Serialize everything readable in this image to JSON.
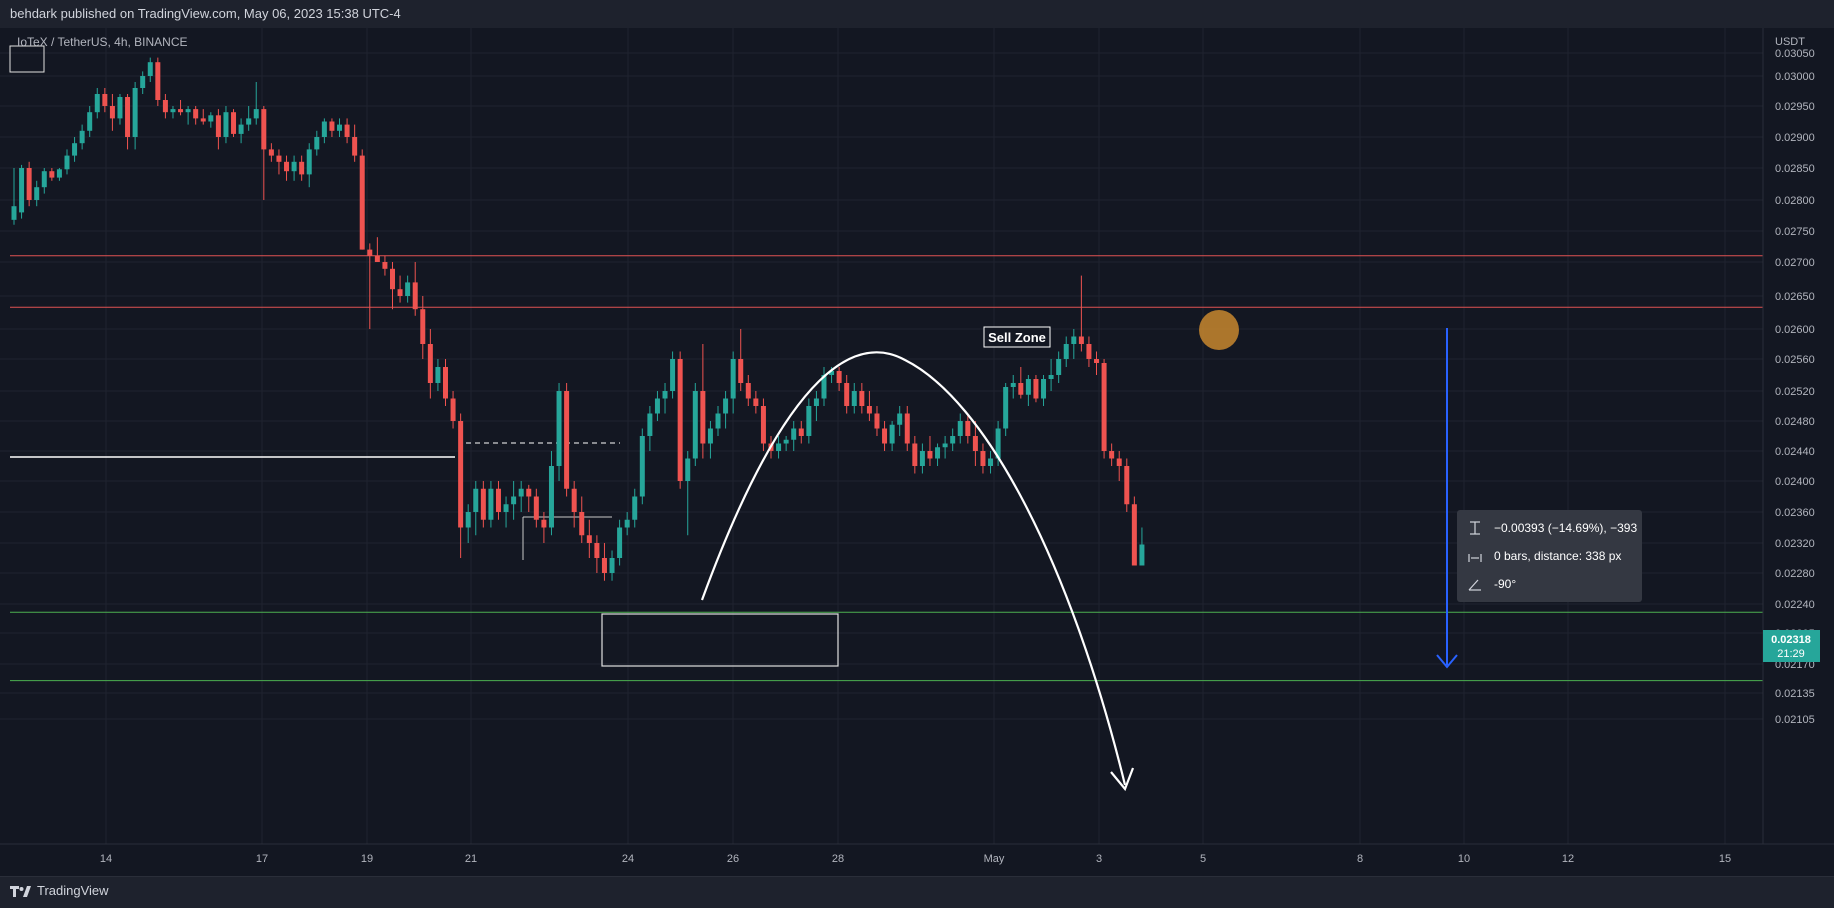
{
  "header": {
    "publish_text": "behdark published on TradingView.com, May 06, 2023 15:38 UTC-4"
  },
  "footer": {
    "brand": "TradingView",
    "logo_icon": "tradingview-logo-icon"
  },
  "chart_data": {
    "type": "candlestick",
    "symbol_label": "IoTeX / TetherUS, 4h, BINANCE",
    "currency": "USDT",
    "y_ticks": [
      "0.03050",
      "0.03000",
      "0.02950",
      "0.02900",
      "0.02850",
      "0.02800",
      "0.02750",
      "0.02700",
      "0.02650",
      "0.02600",
      "0.02560",
      "0.02520",
      "0.02480",
      "0.02440",
      "0.02400",
      "0.02360",
      "0.02320",
      "0.02280",
      "0.02240",
      "0.02205",
      "0.02170",
      "0.02135",
      "0.02105"
    ],
    "x_ticks": [
      "14",
      "17",
      "19",
      "21",
      "24",
      "26",
      "28",
      "May",
      "3",
      "5",
      "8",
      "10",
      "12",
      "15"
    ],
    "last_price": {
      "value": "0.02318",
      "countdown": "21:29"
    },
    "colors": {
      "up": "#26a69a",
      "down": "#ef5350",
      "background": "#131722",
      "grid": "#1f2330",
      "resistance": "#e05252",
      "support": "#4caf50",
      "arrow": "#2962ff",
      "marker": "#c8872e"
    },
    "annotations": {
      "sell_zone_label": "Sell Zone",
      "resistance_levels": [
        0.0271,
        0.02633
      ],
      "support_levels": [
        0.0223,
        0.0215
      ],
      "measure": {
        "price_change": "−0.00393 (−14.69%), −393",
        "bars_distance": "0 bars, distance: 338 px",
        "angle": "-90°"
      }
    },
    "candles": [
      [
        0.02768,
        0.0285,
        0.0276,
        0.0279
      ],
      [
        0.0278,
        0.02855,
        0.0277,
        0.0285
      ],
      [
        0.0285,
        0.0286,
        0.0279,
        0.028
      ],
      [
        0.028,
        0.0283,
        0.0279,
        0.0282
      ],
      [
        0.0282,
        0.0285,
        0.0281,
        0.02845
      ],
      [
        0.02845,
        0.0285,
        0.0283,
        0.02835
      ],
      [
        0.02835,
        0.0285,
        0.0283,
        0.02848
      ],
      [
        0.02848,
        0.0288,
        0.0284,
        0.0287
      ],
      [
        0.0287,
        0.029,
        0.0286,
        0.0289
      ],
      [
        0.0289,
        0.0292,
        0.0288,
        0.0291
      ],
      [
        0.0291,
        0.0295,
        0.029,
        0.0294
      ],
      [
        0.0294,
        0.0298,
        0.0293,
        0.0297
      ],
      [
        0.0297,
        0.0298,
        0.0294,
        0.0295
      ],
      [
        0.0295,
        0.0297,
        0.0291,
        0.0293
      ],
      [
        0.0293,
        0.0297,
        0.0292,
        0.02965
      ],
      [
        0.02965,
        0.0297,
        0.0288,
        0.029
      ],
      [
        0.029,
        0.0299,
        0.0288,
        0.0298
      ],
      [
        0.0298,
        0.0301,
        0.0297,
        0.03
      ],
      [
        0.03,
        0.0304,
        0.0299,
        0.0303
      ],
      [
        0.0303,
        0.0304,
        0.0295,
        0.0296
      ],
      [
        0.0296,
        0.0297,
        0.0293,
        0.0294
      ],
      [
        0.0294,
        0.0295,
        0.0293,
        0.02945
      ],
      [
        0.02945,
        0.0296,
        0.02935,
        0.0294
      ],
      [
        0.0294,
        0.0295,
        0.0292,
        0.02945
      ],
      [
        0.02945,
        0.0295,
        0.0292,
        0.0293
      ],
      [
        0.0293,
        0.02945,
        0.0292,
        0.02925
      ],
      [
        0.02925,
        0.0294,
        0.02915,
        0.02935
      ],
      [
        0.02935,
        0.02945,
        0.0288,
        0.029
      ],
      [
        0.029,
        0.0295,
        0.0289,
        0.0294
      ],
      [
        0.0294,
        0.02945,
        0.029,
        0.02905
      ],
      [
        0.02905,
        0.0293,
        0.0289,
        0.0292
      ],
      [
        0.0292,
        0.0295,
        0.0291,
        0.0293
      ],
      [
        0.0293,
        0.0299,
        0.0292,
        0.02945
      ],
      [
        0.02945,
        0.0295,
        0.028,
        0.0288
      ],
      [
        0.0288,
        0.0289,
        0.0286,
        0.0287
      ],
      [
        0.0287,
        0.0288,
        0.0284,
        0.0286
      ],
      [
        0.0286,
        0.0287,
        0.0283,
        0.02845
      ],
      [
        0.02845,
        0.0287,
        0.0283,
        0.0286
      ],
      [
        0.0286,
        0.0287,
        0.0283,
        0.0284
      ],
      [
        0.0284,
        0.0289,
        0.0282,
        0.0288
      ],
      [
        0.0288,
        0.0291,
        0.0287,
        0.029
      ],
      [
        0.029,
        0.0293,
        0.0289,
        0.02925
      ],
      [
        0.02925,
        0.0293,
        0.029,
        0.0291
      ],
      [
        0.0291,
        0.0293,
        0.029,
        0.0292
      ],
      [
        0.0292,
        0.0293,
        0.0289,
        0.029
      ],
      [
        0.029,
        0.0292,
        0.0286,
        0.0287
      ],
      [
        0.0287,
        0.0288,
        0.0272,
        0.0272
      ],
      [
        0.0272,
        0.0273,
        0.026,
        0.0271
      ],
      [
        0.0271,
        0.0274,
        0.027,
        0.027
      ],
      [
        0.027,
        0.0271,
        0.0268,
        0.0269
      ],
      [
        0.0269,
        0.027,
        0.0263,
        0.0266
      ],
      [
        0.0266,
        0.0268,
        0.0264,
        0.0265
      ],
      [
        0.0265,
        0.0268,
        0.0264,
        0.0267
      ],
      [
        0.0267,
        0.027,
        0.0262,
        0.0263
      ],
      [
        0.0263,
        0.0265,
        0.0256,
        0.0258
      ],
      [
        0.0258,
        0.026,
        0.0251,
        0.0253
      ],
      [
        0.0253,
        0.0256,
        0.0252,
        0.0255
      ],
      [
        0.0255,
        0.0256,
        0.025,
        0.0251
      ],
      [
        0.0251,
        0.0252,
        0.0247,
        0.0248
      ],
      [
        0.0248,
        0.0249,
        0.023,
        0.0234
      ],
      [
        0.0234,
        0.0237,
        0.0232,
        0.0236
      ],
      [
        0.0236,
        0.024,
        0.0233,
        0.0239
      ],
      [
        0.0239,
        0.024,
        0.0234,
        0.0235
      ],
      [
        0.0235,
        0.024,
        0.0234,
        0.0239
      ],
      [
        0.0239,
        0.024,
        0.0235,
        0.0236
      ],
      [
        0.0236,
        0.0238,
        0.0234,
        0.0237
      ],
      [
        0.0237,
        0.024,
        0.0235,
        0.0238
      ],
      [
        0.0238,
        0.024,
        0.0236,
        0.0239
      ],
      [
        0.0239,
        0.02395,
        0.0236,
        0.0238
      ],
      [
        0.0238,
        0.0239,
        0.0234,
        0.0235
      ],
      [
        0.0235,
        0.0236,
        0.0232,
        0.0234
      ],
      [
        0.0234,
        0.0244,
        0.0233,
        0.0242
      ],
      [
        0.0242,
        0.0253,
        0.024,
        0.0252
      ],
      [
        0.0252,
        0.0253,
        0.0238,
        0.0239
      ],
      [
        0.0239,
        0.024,
        0.0234,
        0.0236
      ],
      [
        0.0236,
        0.0238,
        0.0232,
        0.0233
      ],
      [
        0.0233,
        0.0235,
        0.023,
        0.0232
      ],
      [
        0.0232,
        0.0233,
        0.0228,
        0.023
      ],
      [
        0.023,
        0.0232,
        0.0227,
        0.0228
      ],
      [
        0.0228,
        0.0231,
        0.0227,
        0.023
      ],
      [
        0.023,
        0.0235,
        0.0229,
        0.0234
      ],
      [
        0.0234,
        0.0236,
        0.0233,
        0.0235
      ],
      [
        0.0235,
        0.0239,
        0.0234,
        0.0238
      ],
      [
        0.0238,
        0.0247,
        0.0237,
        0.0246
      ],
      [
        0.0246,
        0.025,
        0.0244,
        0.0249
      ],
      [
        0.0249,
        0.0252,
        0.0248,
        0.0251
      ],
      [
        0.0251,
        0.0253,
        0.0249,
        0.0252
      ],
      [
        0.0252,
        0.0257,
        0.0251,
        0.0256
      ],
      [
        0.0256,
        0.0257,
        0.0239,
        0.024
      ],
      [
        0.024,
        0.0244,
        0.0233,
        0.0243
      ],
      [
        0.0243,
        0.0253,
        0.0242,
        0.0252
      ],
      [
        0.0252,
        0.0258,
        0.0243,
        0.0245
      ],
      [
        0.0245,
        0.0248,
        0.0243,
        0.0247
      ],
      [
        0.0247,
        0.025,
        0.0246,
        0.0249
      ],
      [
        0.0249,
        0.0252,
        0.0247,
        0.0251
      ],
      [
        0.0251,
        0.0257,
        0.0249,
        0.0256
      ],
      [
        0.0256,
        0.026,
        0.0252,
        0.0253
      ],
      [
        0.0253,
        0.0254,
        0.025,
        0.0251
      ],
      [
        0.0251,
        0.0252,
        0.0249,
        0.025
      ],
      [
        0.025,
        0.0251,
        0.0244,
        0.0245
      ],
      [
        0.0245,
        0.0246,
        0.0243,
        0.0244
      ],
      [
        0.0244,
        0.0246,
        0.0243,
        0.0245
      ],
      [
        0.0245,
        0.0246,
        0.0244,
        0.02455
      ],
      [
        0.02455,
        0.0248,
        0.0244,
        0.0247
      ],
      [
        0.0247,
        0.0248,
        0.0245,
        0.0246
      ],
      [
        0.0246,
        0.0251,
        0.0245,
        0.025
      ],
      [
        0.025,
        0.0252,
        0.0248,
        0.0251
      ],
      [
        0.0251,
        0.0255,
        0.025,
        0.0254
      ],
      [
        0.0254,
        0.0255,
        0.0253,
        0.02545
      ],
      [
        0.02545,
        0.0255,
        0.0252,
        0.0253
      ],
      [
        0.0253,
        0.0254,
        0.0249,
        0.025
      ],
      [
        0.025,
        0.0253,
        0.0249,
        0.0252
      ],
      [
        0.0252,
        0.0253,
        0.0249,
        0.025
      ],
      [
        0.025,
        0.0252,
        0.0248,
        0.0249
      ],
      [
        0.0249,
        0.025,
        0.0246,
        0.0247
      ],
      [
        0.0247,
        0.0248,
        0.0244,
        0.0245
      ],
      [
        0.0245,
        0.0248,
        0.0244,
        0.02475
      ],
      [
        0.02475,
        0.025,
        0.0246,
        0.0249
      ],
      [
        0.0249,
        0.025,
        0.0244,
        0.0245
      ],
      [
        0.0245,
        0.0246,
        0.0241,
        0.0242
      ],
      [
        0.0242,
        0.0245,
        0.0241,
        0.0244
      ],
      [
        0.0244,
        0.0246,
        0.0242,
        0.0243
      ],
      [
        0.0243,
        0.0245,
        0.0242,
        0.02445
      ],
      [
        0.02445,
        0.0246,
        0.0243,
        0.0245
      ],
      [
        0.0245,
        0.0247,
        0.0244,
        0.0246
      ],
      [
        0.0246,
        0.0249,
        0.0245,
        0.0248
      ],
      [
        0.0248,
        0.0249,
        0.0245,
        0.0246
      ],
      [
        0.0246,
        0.0248,
        0.0242,
        0.0244
      ],
      [
        0.0244,
        0.0245,
        0.0241,
        0.0242
      ],
      [
        0.0242,
        0.0244,
        0.0241,
        0.0243
      ],
      [
        0.0243,
        0.0248,
        0.0242,
        0.0247
      ],
      [
        0.0247,
        0.0253,
        0.0246,
        0.02525
      ],
      [
        0.02525,
        0.0254,
        0.0251,
        0.0253
      ],
      [
        0.0253,
        0.0255,
        0.0251,
        0.02515
      ],
      [
        0.02515,
        0.0254,
        0.025,
        0.02535
      ],
      [
        0.02535,
        0.0254,
        0.02505,
        0.0251
      ],
      [
        0.0251,
        0.0254,
        0.025,
        0.02535
      ],
      [
        0.02535,
        0.0256,
        0.0252,
        0.0254
      ],
      [
        0.0254,
        0.0257,
        0.0253,
        0.0256
      ],
      [
        0.0256,
        0.0259,
        0.0255,
        0.0258
      ],
      [
        0.0258,
        0.026,
        0.0256,
        0.0259
      ],
      [
        0.0259,
        0.0268,
        0.0257,
        0.0258
      ],
      [
        0.0258,
        0.0259,
        0.0255,
        0.0256
      ],
      [
        0.0256,
        0.0257,
        0.0254,
        0.02555
      ],
      [
        0.02555,
        0.0256,
        0.0243,
        0.0244
      ],
      [
        0.0244,
        0.0245,
        0.0242,
        0.0243
      ],
      [
        0.0243,
        0.0244,
        0.024,
        0.0242
      ],
      [
        0.0242,
        0.0243,
        0.0236,
        0.0237
      ],
      [
        0.0237,
        0.0238,
        0.0229,
        0.0229
      ],
      [
        0.0229,
        0.0234,
        0.0229,
        0.02318
      ]
    ]
  }
}
